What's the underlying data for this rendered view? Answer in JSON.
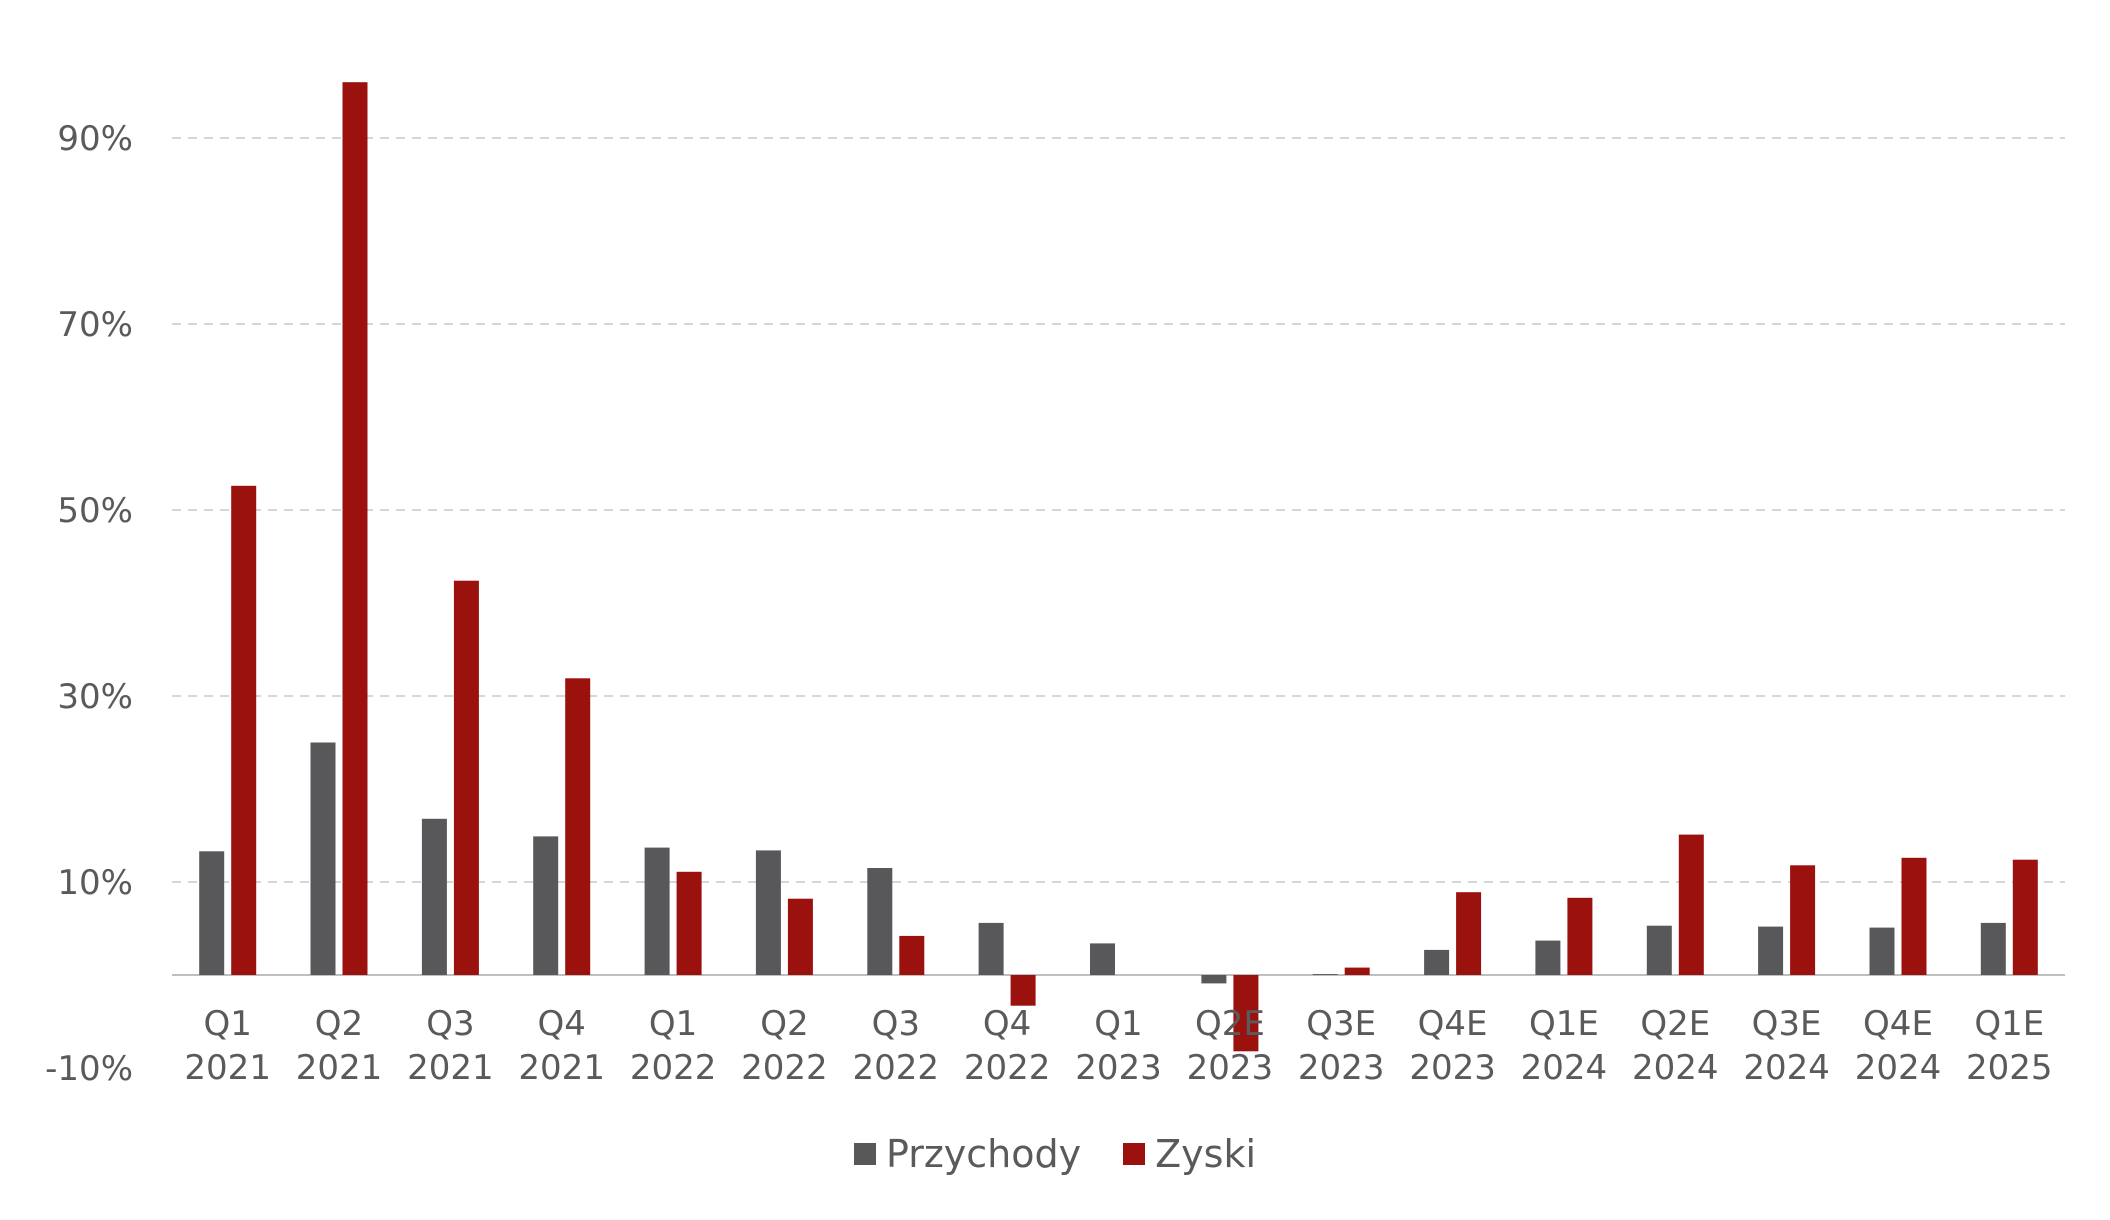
{
  "chart_data": {
    "type": "bar",
    "title": "",
    "xlabel": "",
    "ylabel": "",
    "ylim": [
      -10,
      98
    ],
    "yticks": [
      -10,
      10,
      30,
      50,
      70,
      90
    ],
    "ytick_labels": [
      "-10%",
      "10%",
      "30%",
      "50%",
      "70%",
      "90%"
    ],
    "grid": true,
    "legend_position": "bottom-center",
    "categories": [
      [
        "Q1",
        "2021"
      ],
      [
        "Q2",
        "2021"
      ],
      [
        "Q3",
        "2021"
      ],
      [
        "Q4",
        "2021"
      ],
      [
        "Q1",
        "2022"
      ],
      [
        "Q2",
        "2022"
      ],
      [
        "Q3",
        "2022"
      ],
      [
        "Q4",
        "2022"
      ],
      [
        "Q1",
        "2023"
      ],
      [
        "Q2E",
        "2023"
      ],
      [
        "Q3E",
        "2023"
      ],
      [
        "Q4E",
        "2023"
      ],
      [
        "Q1E",
        "2024"
      ],
      [
        "Q2E",
        "2024"
      ],
      [
        "Q3E",
        "2024"
      ],
      [
        "Q4E",
        "2024"
      ],
      [
        "Q1E",
        "2025"
      ]
    ],
    "series": [
      {
        "name": "Przychody",
        "color": "#58585a",
        "values": [
          13.3,
          25.0,
          16.8,
          14.9,
          13.7,
          13.4,
          11.5,
          5.6,
          3.4,
          -0.9,
          0.1,
          2.7,
          3.7,
          5.3,
          5.2,
          5.1,
          5.6
        ]
      },
      {
        "name": "Zyski",
        "color": "#9b110d",
        "values": [
          52.6,
          96.0,
          42.4,
          31.9,
          11.1,
          8.2,
          4.2,
          -3.3,
          0.0,
          -8.2,
          0.8,
          8.9,
          8.3,
          15.1,
          11.8,
          12.6,
          12.4
        ]
      }
    ]
  },
  "legend": {
    "items": [
      {
        "label": "Przychody",
        "color": "#58585a"
      },
      {
        "label": "Zyski",
        "color": "#9b110d"
      }
    ]
  }
}
